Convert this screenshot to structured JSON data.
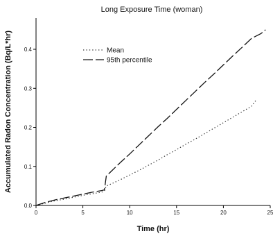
{
  "chart_data": {
    "type": "line",
    "title": "Long Exposure Time (woman)",
    "xlabel": "Time (hr)",
    "ylabel": "Accumulated Radon Concentration (Bq/L*hr)",
    "xlim": [
      0,
      25
    ],
    "ylim": [
      0,
      0.48
    ],
    "x_ticks": [
      0,
      5,
      10,
      15,
      20,
      25
    ],
    "x_tick_labels": [
      "0",
      "5",
      "10",
      "15",
      "20",
      "25"
    ],
    "y_ticks": [
      0.0,
      0.1,
      0.2,
      0.3,
      0.4
    ],
    "y_tick_labels": [
      "0.0",
      "0.1",
      "0.2",
      "0.3",
      "0.4"
    ],
    "grid": false,
    "legend_position": "upper-left",
    "series": [
      {
        "name": "Mean",
        "style": "dotted",
        "color": "#333333",
        "x": [
          0,
          1,
          2,
          3,
          4,
          5,
          6,
          7,
          7.3,
          7.5,
          8,
          9,
          10,
          11,
          12,
          13,
          14,
          15,
          16,
          17,
          18,
          19,
          20,
          21,
          22,
          23,
          23.5
        ],
        "y": [
          0.0,
          0.006,
          0.012,
          0.016,
          0.021,
          0.026,
          0.03,
          0.034,
          0.037,
          0.05,
          0.055,
          0.066,
          0.078,
          0.09,
          0.103,
          0.116,
          0.13,
          0.143,
          0.157,
          0.17,
          0.184,
          0.198,
          0.212,
          0.226,
          0.24,
          0.254,
          0.27
        ]
      },
      {
        "name": "95th percentile",
        "style": "dashed",
        "color": "#111111",
        "x": [
          0,
          1,
          2,
          3,
          4,
          5,
          6,
          7,
          7.3,
          7.5,
          8,
          9,
          10,
          11,
          12,
          13,
          14,
          15,
          16,
          17,
          18,
          19,
          20,
          21,
          22,
          23,
          24,
          24.5
        ],
        "y": [
          0.0,
          0.008,
          0.014,
          0.019,
          0.024,
          0.029,
          0.034,
          0.038,
          0.04,
          0.075,
          0.087,
          0.11,
          0.132,
          0.155,
          0.178,
          0.201,
          0.223,
          0.246,
          0.269,
          0.292,
          0.315,
          0.337,
          0.36,
          0.383,
          0.405,
          0.428,
          0.44,
          0.45
        ]
      }
    ]
  }
}
